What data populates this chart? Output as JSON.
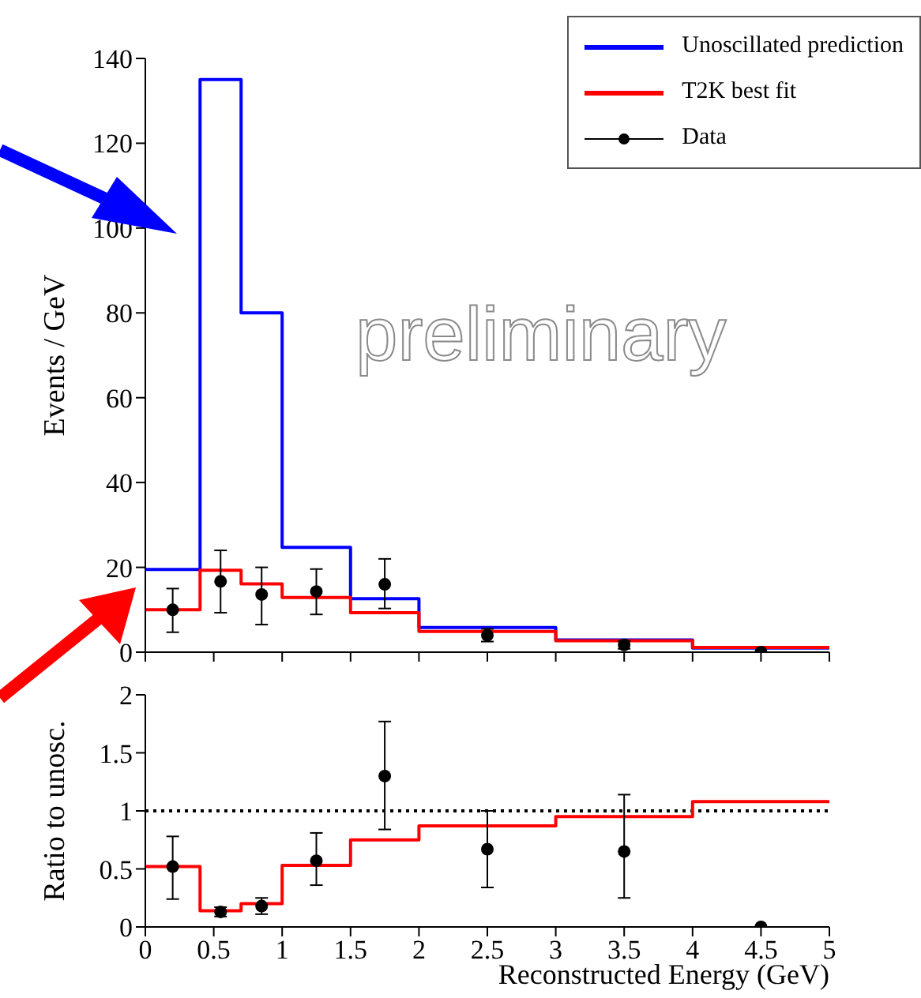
{
  "chart_data": [
    {
      "type": "histogram",
      "ylabel": "Events / GeV",
      "bins": [
        0,
        0.4,
        0.7,
        1,
        1.5,
        2,
        3,
        4,
        5
      ],
      "xlim": [
        0,
        5
      ],
      "xticks": [
        0,
        0.5,
        1,
        1.5,
        2,
        2.5,
        3,
        3.5,
        4,
        4.5,
        5
      ],
      "ylim": [
        0,
        140
      ],
      "yticks": [
        0,
        20,
        40,
        60,
        80,
        100,
        120,
        140
      ],
      "tick_labels": "y",
      "legend": "top right",
      "annotations": [
        "preliminary"
      ],
      "series": [
        {
          "name": "Unoscillated prediction",
          "color": "#0000ff",
          "values": [
            19.5,
            135,
            80,
            24.7,
            12.6,
            5.8,
            2.9,
            1.0
          ]
        },
        {
          "name": "T2K best fit",
          "color": "#ff0000",
          "values": [
            10,
            19.3,
            16.1,
            12.9,
            9.3,
            4.9,
            2.7,
            1.1
          ]
        },
        {
          "name": "Data",
          "type": "scatter",
          "color": "#000000",
          "marker": "circle",
          "x": [
            0.2,
            0.55,
            0.85,
            1.25,
            1.75,
            2.5,
            3.5,
            4.5
          ],
          "values": [
            10,
            16.7,
            13.6,
            14.3,
            16,
            4,
            1.7,
            0
          ],
          "errors": [
            [
              4.7,
              15
            ],
            [
              9.3,
              24
            ],
            [
              6.5,
              20
            ],
            [
              8.9,
              19.6
            ],
            [
              10.3,
              22
            ],
            [
              2.5,
              5.5
            ],
            [
              0.8,
              2.6
            ],
            null
          ]
        }
      ]
    },
    {
      "type": "histogram",
      "xlabel": "Reconstructed Energy (GeV)",
      "ylabel": "Ratio to unosc.",
      "bins": [
        0,
        0.4,
        0.7,
        1,
        1.5,
        2,
        3,
        4,
        5
      ],
      "xlim": [
        0,
        5
      ],
      "xticks": [
        0,
        0.5,
        1,
        1.5,
        2,
        2.5,
        3,
        3.5,
        4,
        4.5,
        5
      ],
      "ylim": [
        0,
        2
      ],
      "yticks": [
        0,
        0.5,
        1,
        1.5,
        2
      ],
      "ref_lines": [
        {
          "axis": "y",
          "value": 1,
          "color": "#000000",
          "line_style": "dotted"
        }
      ],
      "series": [
        {
          "color": "#ff0000",
          "values": [
            0.52,
            0.14,
            0.2,
            0.53,
            0.75,
            0.87,
            0.95,
            1.08
          ]
        },
        {
          "type": "scatter",
          "color": "#000000",
          "marker": "circle",
          "x": [
            0.2,
            0.55,
            0.85,
            1.25,
            1.75,
            2.5,
            3.5,
            4.5
          ],
          "values": [
            0.52,
            0.13,
            0.18,
            0.57,
            1.3,
            0.67,
            0.65,
            0
          ],
          "errors": [
            [
              0.24,
              0.78
            ],
            [
              0.09,
              0.17
            ],
            [
              0.11,
              0.25
            ],
            [
              0.36,
              0.81
            ],
            [
              0.84,
              1.77
            ],
            [
              0.34,
              1.0
            ],
            [
              0.25,
              1.14
            ],
            null
          ]
        }
      ]
    }
  ]
}
